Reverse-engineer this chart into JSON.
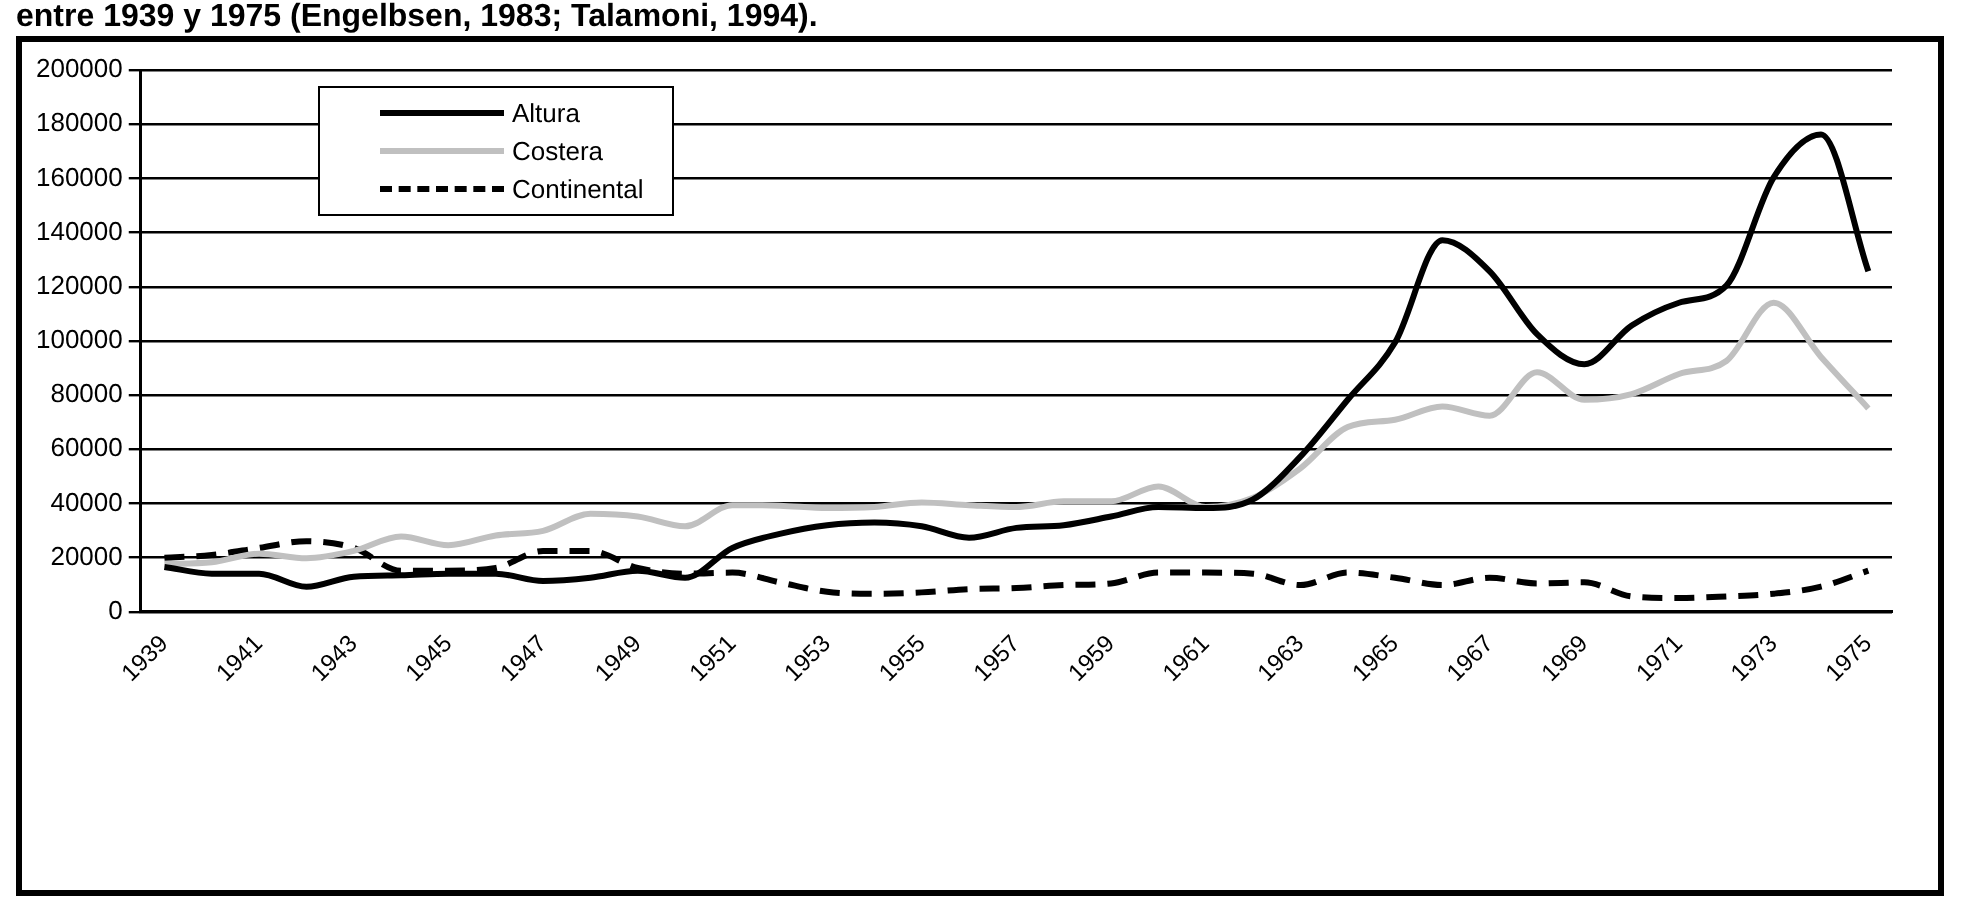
{
  "chart_data": {
    "type": "line",
    "title": "entre 1939 y 1975 (Engelbsen, 1983; Talamoni, 1994).",
    "categories": [
      "1939",
      null,
      "1941",
      null,
      "1943",
      null,
      "1945",
      null,
      "1947",
      null,
      "1949",
      null,
      "1951",
      null,
      "1953",
      null,
      "1955",
      null,
      "1957",
      null,
      "1959",
      null,
      "1961",
      null,
      "1963",
      null,
      "1965",
      null,
      "1967",
      null,
      "1969",
      null,
      "1971",
      null,
      "1973",
      null,
      "1975"
    ],
    "series": [
      {
        "name": "Altura",
        "color": "#000000",
        "line_style": "solid",
        "values": [
          16600,
          14100,
          14100,
          9300,
          13000,
          13500,
          14100,
          14100,
          11400,
          12600,
          15200,
          12600,
          23600,
          28800,
          32000,
          33000,
          31600,
          27400,
          31000,
          32000,
          35200,
          38700,
          38300,
          41500,
          57300,
          78300,
          99400,
          137200,
          125700,
          102500,
          91400,
          105700,
          114100,
          120400,
          160400,
          176200,
          125700
        ]
      },
      {
        "name": "Costera",
        "color": "#c0c0c0",
        "line_style": "solid",
        "values": [
          17700,
          18300,
          21500,
          19800,
          22500,
          27800,
          24600,
          28200,
          29900,
          36200,
          35200,
          31600,
          39400,
          39200,
          38300,
          38700,
          40400,
          39400,
          38700,
          40800,
          40800,
          46300,
          38700,
          42100,
          53000,
          68200,
          70900,
          75800,
          72400,
          88400,
          78300,
          80400,
          87800,
          92600,
          114100,
          94100,
          75100
        ]
      },
      {
        "name": "Continental",
        "color": "#000000",
        "line_style": "dashed",
        "values": [
          20000,
          21000,
          23600,
          26100,
          23600,
          15200,
          15200,
          16200,
          22500,
          22500,
          16200,
          14100,
          14500,
          10900,
          7400,
          6700,
          7200,
          8400,
          8800,
          9900,
          10500,
          14500,
          14500,
          14100,
          9900,
          14500,
          12600,
          9900,
          12600,
          10500,
          10900,
          5700,
          5100,
          5700,
          6700,
          9300,
          15200
        ]
      }
    ],
    "ylim": [
      0,
      200000
    ],
    "yticks": [
      0,
      20000,
      40000,
      60000,
      80000,
      100000,
      120000,
      140000,
      160000,
      180000,
      200000
    ],
    "grid": "y",
    "legend": "top left",
    "marker": "none"
  }
}
